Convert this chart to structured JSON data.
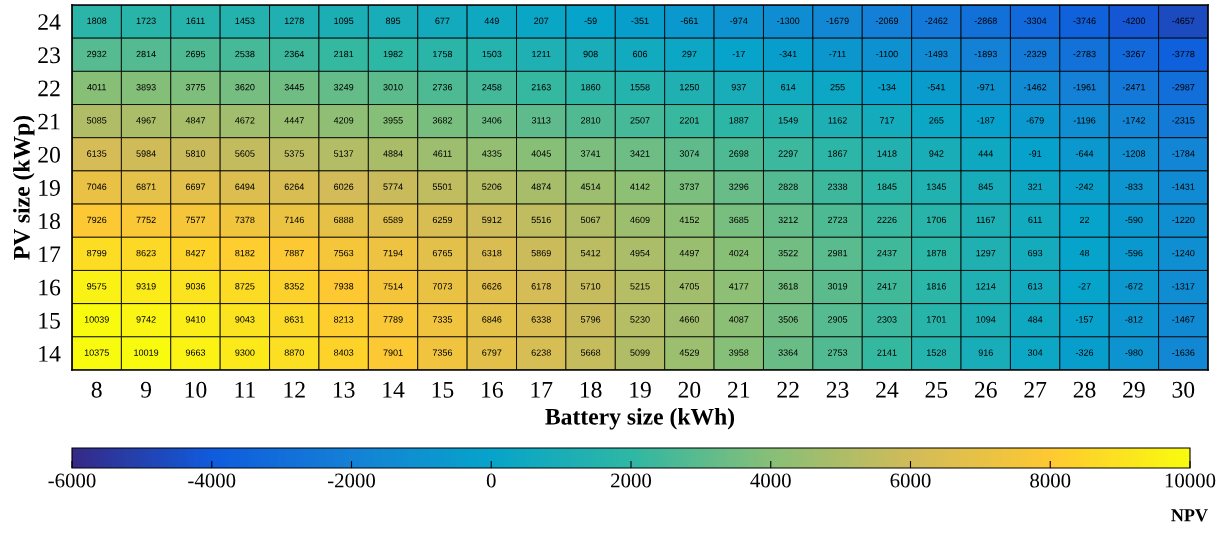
{
  "chart_data": {
    "type": "heatmap",
    "xlabel": "Battery size (kWh)",
    "ylabel": "PV size (kWp)",
    "clabel": "NPV",
    "categories": [
      "8",
      "9",
      "10",
      "11",
      "12",
      "13",
      "14",
      "15",
      "16",
      "17",
      "18",
      "19",
      "20",
      "21",
      "22",
      "23",
      "24",
      "25",
      "26",
      "27",
      "28",
      "29",
      "30"
    ],
    "y_categories": [
      "24",
      "23",
      "22",
      "21",
      "20",
      "19",
      "18",
      "17",
      "16",
      "15",
      "14"
    ],
    "cells": [
      [
        1808,
        1723,
        1611,
        1453,
        1278,
        1095,
        895,
        677,
        449,
        207,
        -59,
        -351,
        -661,
        -974,
        -1300,
        -1679,
        -2069,
        -2462,
        -2868,
        -3304,
        -3746,
        -4200,
        -4657
      ],
      [
        2932,
        2814,
        2695,
        2538,
        2364,
        2181,
        1982,
        1758,
        1503,
        1211,
        908,
        606,
        297,
        -17,
        -341,
        -711,
        -1100,
        -1493,
        -1893,
        -2329,
        -2783,
        -3267,
        -3778
      ],
      [
        4011,
        3893,
        3775,
        3620,
        3445,
        3249,
        3010,
        2736,
        2458,
        2163,
        1860,
        1558,
        1250,
        937,
        614,
        255,
        -134,
        -541,
        -971,
        -1462,
        -1961,
        -2471,
        -2987
      ],
      [
        5085,
        4967,
        4847,
        4672,
        4447,
        4209,
        3955,
        3682,
        3406,
        3113,
        2810,
        2507,
        2201,
        1887,
        1549,
        1162,
        717,
        265,
        -187,
        -679,
        -1196,
        -1742,
        -2315
      ],
      [
        6135,
        5984,
        5810,
        5605,
        5375,
        5137,
        4884,
        4611,
        4335,
        4045,
        3741,
        3421,
        3074,
        2698,
        2297,
        1867,
        1418,
        942,
        444,
        -91,
        -644,
        -1208,
        -1784
      ],
      [
        7046,
        6871,
        6697,
        6494,
        6264,
        6026,
        5774,
        5501,
        5206,
        4874,
        4514,
        4142,
        3737,
        3296,
        2828,
        2338,
        1845,
        1345,
        845,
        321,
        -242,
        -833,
        -1431
      ],
      [
        7926,
        7752,
        7577,
        7378,
        7146,
        6888,
        6589,
        6259,
        5912,
        5516,
        5067,
        4609,
        4152,
        3685,
        3212,
        2723,
        2226,
        1706,
        1167,
        611,
        22,
        -590,
        -1220
      ],
      [
        8799,
        8623,
        8427,
        8182,
        7887,
        7563,
        7194,
        6765,
        6318,
        5869,
        5412,
        4954,
        4497,
        4024,
        3522,
        2981,
        2437,
        1878,
        1297,
        693,
        48,
        -596,
        -1240
      ],
      [
        9575,
        9319,
        9036,
        8725,
        8352,
        7938,
        7514,
        7073,
        6626,
        6178,
        5710,
        5215,
        4705,
        4177,
        3618,
        3019,
        2417,
        1816,
        1214,
        613,
        -27,
        -672,
        -1317
      ],
      [
        10039,
        9742,
        9410,
        9043,
        8631,
        8213,
        7789,
        7335,
        6846,
        6338,
        5796,
        5230,
        4660,
        4087,
        3506,
        2905,
        2303,
        1701,
        1094,
        484,
        -157,
        -812,
        -1467
      ],
      [
        10375,
        10019,
        9663,
        9300,
        8870,
        8403,
        7901,
        7356,
        6797,
        6238,
        5668,
        5099,
        4529,
        3958,
        3364,
        2753,
        2141,
        1528,
        916,
        304,
        -326,
        -980,
        -1636
      ]
    ],
    "data_labels": true,
    "clim": [
      -6000,
      10000
    ],
    "cticks": [
      -6000,
      -4000,
      -2000,
      0,
      2000,
      4000,
      6000,
      8000,
      10000
    ]
  }
}
